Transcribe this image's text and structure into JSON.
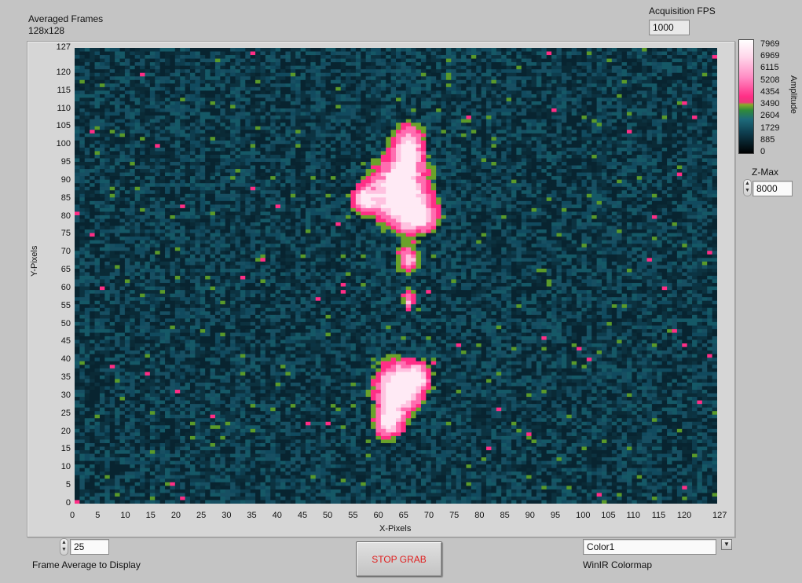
{
  "graph": {
    "title_line1": "Averaged Frames",
    "title_line2": "128x128",
    "x_axis_label": "X-Pixels",
    "y_axis_label": "Y-Pixels",
    "x_ticks": [
      "0",
      "5",
      "10",
      "15",
      "20",
      "25",
      "30",
      "35",
      "40",
      "45",
      "50",
      "55",
      "60",
      "65",
      "70",
      "75",
      "80",
      "85",
      "90",
      "95",
      "100",
      "105",
      "110",
      "115",
      "120",
      "127"
    ],
    "y_ticks": [
      "127",
      "120",
      "115",
      "110",
      "105",
      "100",
      "95",
      "90",
      "85",
      "80",
      "75",
      "70",
      "65",
      "60",
      "55",
      "50",
      "45",
      "40",
      "35",
      "30",
      "25",
      "20",
      "15",
      "10",
      "5",
      "0"
    ]
  },
  "acquisition_fps": {
    "label": "Acquisition FPS",
    "value": "1000"
  },
  "colorbar": {
    "label": "Amplitude",
    "ticks": [
      "7969",
      "6969",
      "6115",
      "5208",
      "4354",
      "3490",
      "2604",
      "1729",
      "885",
      "0"
    ]
  },
  "zmax": {
    "label": "Z-Max",
    "value": "8000"
  },
  "frame_average": {
    "label": "Frame Average to Display",
    "value": "25"
  },
  "stop_button": {
    "label": "STOP GRAB"
  },
  "colormap": {
    "label": "WinIR Colormap",
    "value": "Color1"
  },
  "colors": {
    "background": "#c4c4c4",
    "plot_base": "#0e3d4e",
    "hot_pink": "#ff2e86",
    "hot_white": "#ffe6f3",
    "green": "#5a9a2a",
    "stop_text": "#e02020"
  },
  "icons": {
    "spin_up": "triangle-up",
    "spin_down": "triangle-down",
    "dropdown": "triangle-down"
  }
}
